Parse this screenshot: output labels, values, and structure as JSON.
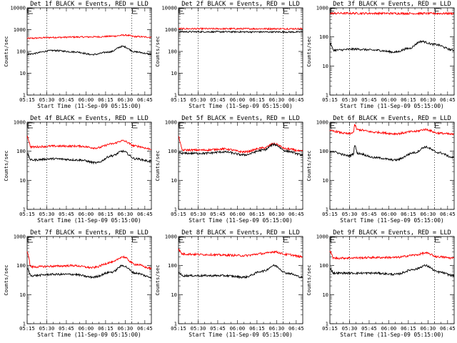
{
  "chart_data": [
    {
      "type": "line",
      "title": "Det 1f BLACK = Events, RED = LLD",
      "xlabel": "Start Time (11-Sep-09 05:15:00)",
      "ylabel": "Counts/sec",
      "yscale": "log",
      "ylim": [
        1,
        10000
      ],
      "xlim": [
        "05:15",
        "06:50"
      ],
      "x_ticks": [
        "05:15",
        "05:30",
        "05:45",
        "06:00",
        "06:15",
        "06:30",
        "06:45"
      ],
      "y_ticks": [
        "1",
        "10",
        "100",
        "1000",
        "10000"
      ],
      "dotted_vlines": [
        "05:30",
        "06:35"
      ],
      "flag_marks": [
        "05:15",
        "06:35"
      ],
      "series": [
        {
          "color": "#ff0000",
          "x": [
            "05:15",
            "05:35",
            "05:55",
            "06:10",
            "06:20",
            "06:30",
            "06:38",
            "06:50"
          ],
          "y": [
            400,
            440,
            460,
            470,
            500,
            560,
            480,
            450
          ]
        },
        {
          "color": "#000000",
          "x": [
            "05:15",
            "05:35",
            "05:52",
            "06:05",
            "06:18",
            "06:28",
            "06:38",
            "06:50"
          ],
          "y": [
            75,
            110,
            95,
            72,
            95,
            170,
            95,
            75
          ]
        }
      ]
    },
    {
      "type": "line",
      "title": "Det 2f BLACK = Events, RED = LLD",
      "xlabel": "Start Time (11-Sep-09 05:15:00)",
      "ylabel": "Counts/sec",
      "yscale": "log",
      "ylim": [
        1,
        10000
      ],
      "xlim": [
        "05:15",
        "06:50"
      ],
      "x_ticks": [
        "05:15",
        "05:30",
        "05:45",
        "06:00",
        "06:15",
        "06:30",
        "06:45"
      ],
      "y_ticks": [
        "1",
        "10",
        "100",
        "1000",
        "10000"
      ],
      "dotted_vlines": [
        "05:30",
        "06:35"
      ],
      "flag_marks": [
        "05:15",
        "06:35"
      ],
      "series": [
        {
          "color": "#ff0000",
          "x": [
            "05:15",
            "06:50"
          ],
          "y": [
            1100,
            1100
          ]
        },
        {
          "color": "#000000",
          "x": [
            "05:15",
            "06:50"
          ],
          "y": [
            800,
            780
          ]
        }
      ]
    },
    {
      "type": "line",
      "title": "Det 3f BLACK = Events, RED = LLD",
      "xlabel": "Start Time (11-Sep-09 05:15:00)",
      "ylabel": "Counts/sec",
      "yscale": "log",
      "ylim": [
        1,
        1000
      ],
      "xlim": [
        "05:15",
        "06:50"
      ],
      "x_ticks": [
        "05:15",
        "05:30",
        "05:45",
        "06:00",
        "06:15",
        "06:30",
        "06:45"
      ],
      "y_ticks": [
        "1",
        "10",
        "100",
        "1000"
      ],
      "dotted_vlines": [
        "05:30",
        "06:35"
      ],
      "flag_marks": [
        "05:15",
        "06:35"
      ],
      "series": [
        {
          "color": "#ff0000",
          "x": [
            "05:15",
            "06:50"
          ],
          "y": [
            650,
            640
          ]
        },
        {
          "color": "#000000",
          "x": [
            "05:15",
            "05:18",
            "05:35",
            "05:50",
            "06:05",
            "06:15",
            "06:25",
            "06:35",
            "06:50"
          ],
          "y": [
            60,
            35,
            38,
            35,
            30,
            40,
            70,
            55,
            35
          ]
        }
      ]
    },
    {
      "type": "line",
      "title": "Det 4f BLACK = Events, RED = LLD",
      "xlabel": "Start Time (11-Sep-09 05:15:00)",
      "ylabel": "Counts/sec",
      "yscale": "log",
      "ylim": [
        1,
        1000
      ],
      "xlim": [
        "05:15",
        "06:50"
      ],
      "x_ticks": [
        "05:15",
        "05:30",
        "05:45",
        "06:00",
        "06:15",
        "06:30",
        "06:45"
      ],
      "y_ticks": [
        "1",
        "10",
        "100",
        "1000"
      ],
      "dotted_vlines": [
        "05:30",
        "06:35"
      ],
      "flag_marks": [
        "05:15",
        "06:35"
      ],
      "series": [
        {
          "color": "#ff0000",
          "x": [
            "05:15",
            "05:18",
            "05:35",
            "05:55",
            "06:08",
            "06:20",
            "06:28",
            "06:38",
            "06:50"
          ],
          "y": [
            320,
            140,
            150,
            150,
            130,
            180,
            230,
            150,
            120
          ]
        },
        {
          "color": "#000000",
          "x": [
            "05:15",
            "05:18",
            "05:35",
            "05:55",
            "06:08",
            "06:20",
            "06:28",
            "06:38",
            "06:50"
          ],
          "y": [
            80,
            50,
            55,
            50,
            40,
            70,
            100,
            55,
            45
          ]
        }
      ]
    },
    {
      "type": "line",
      "title": "Det 5f BLACK = Events, RED = LLD",
      "xlabel": "Start Time (11-Sep-09 05:15:00)",
      "ylabel": "Counts/sec",
      "yscale": "log",
      "ylim": [
        1,
        1000
      ],
      "xlim": [
        "05:15",
        "06:50"
      ],
      "x_ticks": [
        "05:15",
        "05:30",
        "05:45",
        "06:00",
        "06:15",
        "06:30",
        "06:45"
      ],
      "y_ticks": [
        "1",
        "10",
        "100",
        "1000"
      ],
      "dotted_vlines": [
        "05:30",
        "06:35"
      ],
      "flag_marks": [
        "05:15",
        "06:35"
      ],
      "series": [
        {
          "color": "#ff0000",
          "x": [
            "05:15",
            "05:18",
            "05:35",
            "05:50",
            "06:05",
            "06:20",
            "06:28",
            "06:38",
            "06:50"
          ],
          "y": [
            300,
            110,
            110,
            120,
            95,
            130,
            180,
            120,
            100
          ]
        },
        {
          "color": "#000000",
          "x": [
            "05:15",
            "05:18",
            "05:35",
            "05:50",
            "06:05",
            "06:20",
            "06:28",
            "06:38",
            "06:50"
          ],
          "y": [
            90,
            85,
            85,
            95,
            75,
            110,
            170,
            100,
            75
          ]
        }
      ]
    },
    {
      "type": "line",
      "title": "Det 6f BLACK = Events, RED = LLD",
      "xlabel": "Start Time (11-Sep-09 05:15:00)",
      "ylabel": "Counts/sec",
      "yscale": "log",
      "ylim": [
        1,
        1000
      ],
      "xlim": [
        "05:15",
        "06:50"
      ],
      "x_ticks": [
        "05:15",
        "05:30",
        "05:45",
        "06:00",
        "06:15",
        "06:30",
        "06:45"
      ],
      "y_ticks": [
        "1",
        "10",
        "100",
        "1000"
      ],
      "dotted_vlines": [
        "05:30",
        "06:35"
      ],
      "flag_marks": [
        "05:15",
        "06:35"
      ],
      "series": [
        {
          "color": "#ff0000",
          "x": [
            "05:15",
            "05:30",
            "05:33",
            "05:34",
            "05:36",
            "05:50",
            "06:05",
            "06:20",
            "06:28",
            "06:38",
            "06:50"
          ],
          "y": [
            500,
            400,
            450,
            800,
            550,
            450,
            400,
            480,
            560,
            420,
            380
          ]
        },
        {
          "color": "#000000",
          "x": [
            "05:15",
            "05:30",
            "05:33",
            "05:34",
            "05:36",
            "05:50",
            "06:05",
            "06:20",
            "06:28",
            "06:38",
            "06:50"
          ],
          "y": [
            100,
            70,
            80,
            170,
            85,
            60,
            50,
            90,
            140,
            90,
            60
          ]
        }
      ]
    },
    {
      "type": "line",
      "title": "Det 7f BLACK = Events, RED = LLD",
      "xlabel": "Start Time (11-Sep-09 05:15:00)",
      "ylabel": "Counts/sec",
      "yscale": "log",
      "ylim": [
        1,
        1000
      ],
      "xlim": [
        "05:15",
        "06:50"
      ],
      "x_ticks": [
        "05:15",
        "05:30",
        "05:45",
        "06:00",
        "06:15",
        "06:30",
        "06:45"
      ],
      "y_ticks": [
        "1",
        "10",
        "100",
        "1000"
      ],
      "dotted_vlines": [
        "05:30",
        "06:35"
      ],
      "flag_marks": [
        "05:15",
        "06:35"
      ],
      "series": [
        {
          "color": "#ff0000",
          "x": [
            "05:15",
            "05:18",
            "05:35",
            "05:50",
            "06:05",
            "06:20",
            "06:28",
            "06:38",
            "06:50"
          ],
          "y": [
            300,
            90,
            95,
            100,
            85,
            130,
            200,
            110,
            80
          ]
        },
        {
          "color": "#000000",
          "x": [
            "05:15",
            "05:18",
            "05:35",
            "05:50",
            "06:05",
            "06:20",
            "06:28",
            "06:38",
            "06:50"
          ],
          "y": [
            80,
            45,
            50,
            50,
            40,
            60,
            100,
            55,
            40
          ]
        }
      ]
    },
    {
      "type": "line",
      "title": "Det 8f BLACK = Events, RED = LLD",
      "xlabel": "Start Time (11-Sep-09 05:15:00)",
      "ylabel": "Counts/sec",
      "yscale": "log",
      "ylim": [
        1,
        1000
      ],
      "xlim": [
        "05:15",
        "06:50"
      ],
      "x_ticks": [
        "05:15",
        "05:30",
        "05:45",
        "06:00",
        "06:15",
        "06:30",
        "06:45"
      ],
      "y_ticks": [
        "1",
        "10",
        "100",
        "1000"
      ],
      "dotted_vlines": [
        "05:30",
        "06:35"
      ],
      "flag_marks": [
        "05:15",
        "06:35"
      ],
      "series": [
        {
          "color": "#ff0000",
          "x": [
            "05:15",
            "05:18",
            "05:35",
            "05:50",
            "06:05",
            "06:20",
            "06:28",
            "06:38",
            "06:50"
          ],
          "y": [
            350,
            250,
            240,
            230,
            220,
            260,
            300,
            240,
            200
          ]
        },
        {
          "color": "#000000",
          "x": [
            "05:15",
            "05:18",
            "05:35",
            "05:50",
            "06:05",
            "06:20",
            "06:28",
            "06:38",
            "06:50"
          ],
          "y": [
            60,
            45,
            45,
            45,
            40,
            65,
            100,
            55,
            40
          ]
        }
      ]
    },
    {
      "type": "line",
      "title": "Det 9f BLACK = Events, RED = LLD",
      "xlabel": "Start Time (11-Sep-09 05:15:00)",
      "ylabel": "Counts/sec",
      "yscale": "log",
      "ylim": [
        1,
        1000
      ],
      "xlim": [
        "05:15",
        "06:50"
      ],
      "x_ticks": [
        "05:15",
        "05:30",
        "05:45",
        "06:00",
        "06:15",
        "06:30",
        "06:45"
      ],
      "y_ticks": [
        "1",
        "10",
        "100",
        "1000"
      ],
      "dotted_vlines": [
        "05:30",
        "06:35"
      ],
      "flag_marks": [
        "05:15",
        "06:35"
      ],
      "series": [
        {
          "color": "#ff0000",
          "x": [
            "05:15",
            "05:18",
            "05:35",
            "05:50",
            "06:05",
            "06:20",
            "06:28",
            "06:38",
            "06:50"
          ],
          "y": [
            300,
            180,
            185,
            190,
            190,
            230,
            270,
            200,
            180
          ]
        },
        {
          "color": "#000000",
          "x": [
            "05:15",
            "05:18",
            "05:35",
            "05:50",
            "06:05",
            "06:20",
            "06:28",
            "06:38",
            "06:50"
          ],
          "y": [
            80,
            55,
            55,
            55,
            50,
            75,
            100,
            60,
            45
          ]
        }
      ]
    }
  ]
}
